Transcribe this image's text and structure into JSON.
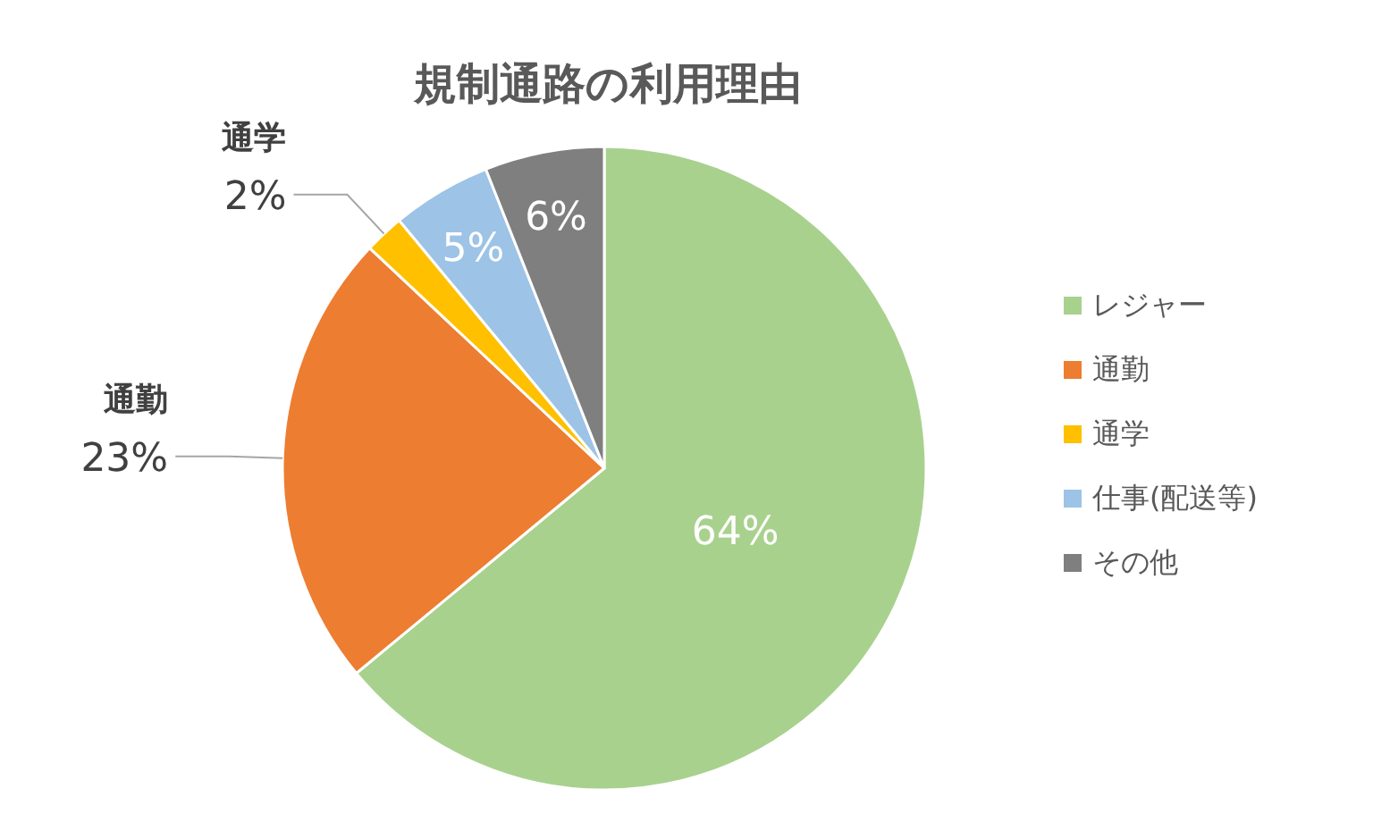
{
  "chart_data": {
    "type": "pie",
    "title": "規制通路の利用理由",
    "categories": [
      "レジャー",
      "通勤",
      "通学",
      "仕事(配送等)",
      "その他"
    ],
    "values": [
      64,
      23,
      2,
      5,
      6
    ],
    "colors": [
      "#a9d18e",
      "#ed7d31",
      "#ffc000",
      "#9dc3e6",
      "#7f7f7f"
    ],
    "value_labels": [
      "64%",
      "通勤\n23%",
      "通学\n2%",
      "5%",
      "6%"
    ],
    "legend": "right"
  }
}
